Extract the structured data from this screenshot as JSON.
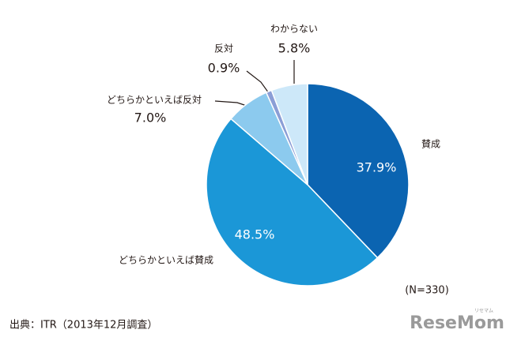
{
  "chart_data": {
    "type": "pie",
    "categories": [
      "賛成",
      "どちらかといえば賛成",
      "どちらかといえば反対",
      "反対",
      "わからない"
    ],
    "values": [
      37.9,
      48.5,
      7.0,
      0.9,
      5.8
    ],
    "value_labels": [
      "37.9%",
      "48.5%",
      "7.0%",
      "0.9%",
      "5.8%"
    ],
    "colors": [
      "#0b64b1",
      "#1b97d7",
      "#8ccaee",
      "#8b9ed6",
      "#cde8f9"
    ],
    "note": "(N=330)",
    "source": "出典：ITR（2013年12月調査）"
  },
  "watermark": {
    "logo": "ReseMom",
    "kana": "リセマム"
  }
}
